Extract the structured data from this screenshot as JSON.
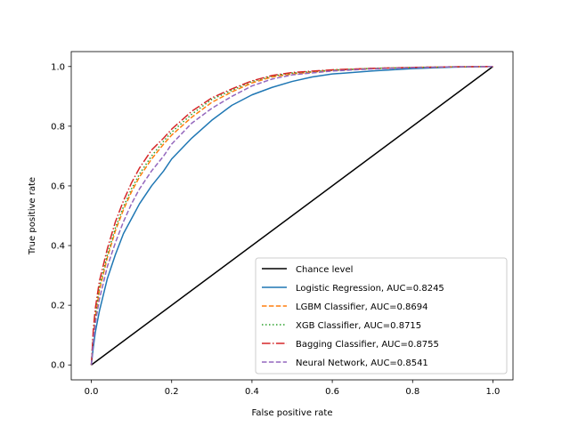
{
  "chart_data": {
    "type": "line",
    "title": "",
    "xlabel": "False positive rate",
    "ylabel": "True positive rate",
    "xlim": [
      -0.05,
      1.05
    ],
    "ylim": [
      -0.05,
      1.05
    ],
    "xticks": [
      0.0,
      0.2,
      0.4,
      0.6,
      0.8,
      1.0
    ],
    "yticks": [
      0.0,
      0.2,
      0.4,
      0.6,
      0.8,
      1.0
    ],
    "xtick_labels": [
      "0.0",
      "0.2",
      "0.4",
      "0.6",
      "0.8",
      "1.0"
    ],
    "ytick_labels": [
      "0.0",
      "0.2",
      "0.4",
      "0.6",
      "0.8",
      "1.0"
    ],
    "grid": false,
    "legend_position": "lower-right",
    "series": [
      {
        "name": "Chance level",
        "color": "#000000",
        "dash": "solid",
        "x": [
          0,
          1
        ],
        "y": [
          0,
          1
        ]
      },
      {
        "name": "Logistic Regression, AUC=0.8245",
        "color": "#1f77b4",
        "dash": "solid",
        "x": [
          0,
          0.005,
          0.01,
          0.02,
          0.04,
          0.06,
          0.08,
          0.1,
          0.12,
          0.15,
          0.18,
          0.2,
          0.25,
          0.3,
          0.35,
          0.4,
          0.45,
          0.5,
          0.55,
          0.6,
          0.7,
          0.8,
          0.9,
          1.0
        ],
        "y": [
          0,
          0.06,
          0.11,
          0.18,
          0.29,
          0.37,
          0.44,
          0.49,
          0.54,
          0.6,
          0.65,
          0.69,
          0.76,
          0.82,
          0.87,
          0.905,
          0.93,
          0.95,
          0.965,
          0.975,
          0.985,
          0.993,
          0.998,
          1.0
        ]
      },
      {
        "name": "LGBM Classifier, AUC=0.8694",
        "color": "#ff7f0e",
        "dash": "dashed",
        "x": [
          0,
          0.005,
          0.01,
          0.02,
          0.04,
          0.06,
          0.08,
          0.1,
          0.12,
          0.15,
          0.18,
          0.2,
          0.25,
          0.3,
          0.35,
          0.4,
          0.45,
          0.5,
          0.6,
          0.7,
          0.8,
          0.9,
          1.0
        ],
        "y": [
          0,
          0.1,
          0.16,
          0.25,
          0.36,
          0.45,
          0.52,
          0.58,
          0.63,
          0.69,
          0.74,
          0.77,
          0.83,
          0.88,
          0.915,
          0.945,
          0.965,
          0.975,
          0.987,
          0.993,
          0.997,
          0.999,
          1.0
        ]
      },
      {
        "name": "XGB Classifier, AUC=0.8715",
        "color": "#2ca02c",
        "dash": "dotted",
        "x": [
          0,
          0.005,
          0.01,
          0.02,
          0.04,
          0.06,
          0.08,
          0.1,
          0.12,
          0.15,
          0.18,
          0.2,
          0.25,
          0.3,
          0.35,
          0.4,
          0.45,
          0.5,
          0.6,
          0.7,
          0.8,
          0.9,
          1.0
        ],
        "y": [
          0,
          0.11,
          0.17,
          0.26,
          0.37,
          0.46,
          0.53,
          0.59,
          0.64,
          0.7,
          0.75,
          0.78,
          0.84,
          0.89,
          0.92,
          0.95,
          0.968,
          0.978,
          0.988,
          0.994,
          0.997,
          0.999,
          1.0
        ]
      },
      {
        "name": "Bagging Classifier, AUC=0.8755",
        "color": "#d62728",
        "dash": "dashdot",
        "x": [
          0,
          0.005,
          0.01,
          0.02,
          0.04,
          0.06,
          0.08,
          0.1,
          0.12,
          0.15,
          0.18,
          0.2,
          0.25,
          0.3,
          0.35,
          0.4,
          0.45,
          0.5,
          0.6,
          0.7,
          0.8,
          0.9,
          1.0
        ],
        "y": [
          0,
          0.12,
          0.19,
          0.28,
          0.39,
          0.48,
          0.55,
          0.61,
          0.66,
          0.72,
          0.76,
          0.79,
          0.85,
          0.895,
          0.925,
          0.952,
          0.97,
          0.98,
          0.989,
          0.994,
          0.997,
          0.999,
          1.0
        ]
      },
      {
        "name": "Neural Network, AUC=0.8541",
        "color": "#9467bd",
        "dash": "dashed",
        "x": [
          0,
          0.005,
          0.01,
          0.02,
          0.04,
          0.06,
          0.08,
          0.1,
          0.12,
          0.15,
          0.18,
          0.2,
          0.25,
          0.3,
          0.35,
          0.4,
          0.45,
          0.5,
          0.6,
          0.7,
          0.8,
          0.9,
          1.0
        ],
        "y": [
          0,
          0.08,
          0.14,
          0.22,
          0.33,
          0.41,
          0.48,
          0.54,
          0.59,
          0.65,
          0.7,
          0.74,
          0.81,
          0.86,
          0.9,
          0.935,
          0.958,
          0.972,
          0.985,
          0.992,
          0.996,
          0.999,
          1.0
        ]
      }
    ]
  }
}
